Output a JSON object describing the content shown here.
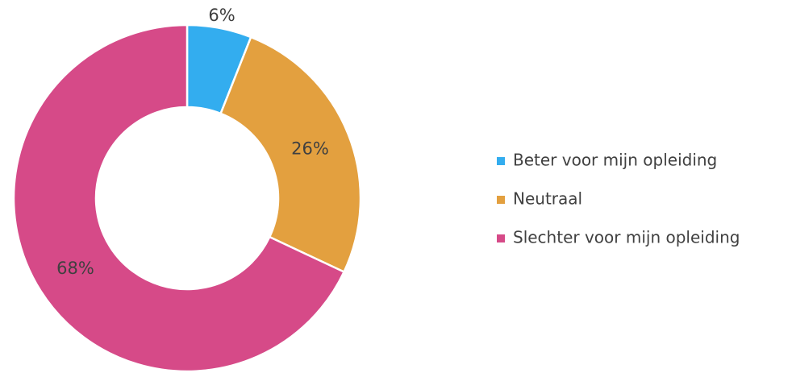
{
  "chart_data": {
    "type": "pie",
    "categories": [
      "Beter voor mijn opleiding",
      "Neutraal",
      "Slechter voor mijn opleiding"
    ],
    "values": [
      6,
      26,
      68
    ],
    "value_labels": [
      "6%",
      "26%",
      "68%"
    ],
    "colors": [
      "#33adef",
      "#e3a03f",
      "#d64a88"
    ],
    "legend": "right"
  }
}
